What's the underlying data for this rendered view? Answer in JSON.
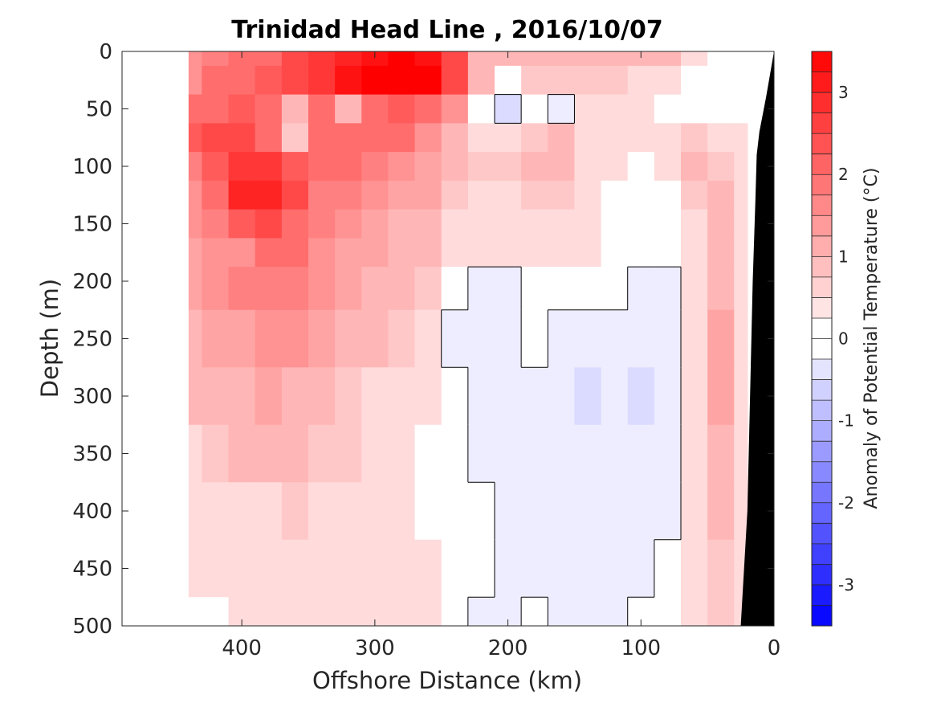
{
  "chart_data": {
    "type": "heatmap",
    "title": "Trinidad Head Line , 2016/10/07",
    "xlabel": "Offshore Distance (km)",
    "ylabel": "Depth (m)",
    "colorbar_label": "Anomaly of Potential Temperature (°C)",
    "xlim": [
      490,
      0
    ],
    "ylim": [
      0,
      500
    ],
    "x_reversed": true,
    "y_reversed": true,
    "x_ticks": [
      400,
      300,
      200,
      100,
      0
    ],
    "y_ticks": [
      0,
      50,
      100,
      150,
      200,
      250,
      300,
      350,
      400,
      450,
      500
    ],
    "colorbar": {
      "range": [
        -3.5,
        3.5
      ],
      "ticks": [
        -3,
        -2,
        -1,
        0,
        1,
        2,
        3
      ],
      "cmap": "blue-white-red"
    },
    "contour_levels_shown": [
      0
    ],
    "data_extent_x": [
      440,
      20
    ],
    "x": [
      440,
      420,
      400,
      380,
      360,
      340,
      320,
      300,
      280,
      260,
      240,
      220,
      200,
      180,
      160,
      140,
      120,
      100,
      80,
      60,
      40,
      20
    ],
    "y": [
      0,
      25,
      50,
      75,
      100,
      125,
      150,
      175,
      200,
      250,
      300,
      350,
      400,
      450,
      500
    ],
    "z": [
      [
        1.3,
        1.6,
        1.8,
        2.0,
        2.3,
        2.6,
        3.0,
        3.2,
        3.3,
        3.2,
        2.4,
        1.0,
        0.8,
        0.9,
        0.9,
        0.9,
        0.9,
        0.9,
        0.9,
        0.5,
        0.1,
        0.0
      ],
      [
        1.5,
        1.8,
        2.0,
        2.2,
        2.4,
        2.6,
        3.1,
        3.3,
        3.4,
        3.3,
        2.5,
        0.8,
        0.2,
        0.7,
        0.7,
        0.7,
        0.6,
        0.5,
        0.4,
        0.1,
        0.0,
        0.0
      ],
      [
        1.8,
        2.0,
        2.2,
        1.8,
        0.9,
        1.8,
        1.0,
        2.0,
        2.2,
        2.0,
        1.3,
        0.2,
        -0.4,
        0.1,
        -0.1,
        0.3,
        0.4,
        0.3,
        0.2,
        0.1,
        0.0,
        0.0
      ],
      [
        2.2,
        2.3,
        2.3,
        2.0,
        0.6,
        1.9,
        2.0,
        1.9,
        1.8,
        1.5,
        1.0,
        0.5,
        0.4,
        0.7,
        0.8,
        0.5,
        0.5,
        0.5,
        0.5,
        0.6,
        0.3,
        0.3
      ],
      [
        1.6,
        2.1,
        2.7,
        2.6,
        2.1,
        1.9,
        2.0,
        1.6,
        1.5,
        1.2,
        0.8,
        0.6,
        0.6,
        0.8,
        0.9,
        0.5,
        0.4,
        0.2,
        0.4,
        0.8,
        0.6,
        0.3
      ],
      [
        1.5,
        2.0,
        2.8,
        3.0,
        2.3,
        1.7,
        1.6,
        1.4,
        1.2,
        1.1,
        0.6,
        0.5,
        0.5,
        0.6,
        0.7,
        0.4,
        0.2,
        0.0,
        0.2,
        0.6,
        0.9,
        0.3
      ],
      [
        1.3,
        1.7,
        2.2,
        2.3,
        2.0,
        1.6,
        1.3,
        1.2,
        1.0,
        0.9,
        0.5,
        0.5,
        0.4,
        0.4,
        0.5,
        0.4,
        0.2,
        0.1,
        0.2,
        0.5,
        0.9,
        0.3
      ],
      [
        1.1,
        1.3,
        1.5,
        1.8,
        1.9,
        1.4,
        1.1,
        1.1,
        0.9,
        0.8,
        0.3,
        0.4,
        0.3,
        0.4,
        0.4,
        0.3,
        0.2,
        0.1,
        0.1,
        0.5,
        1.0,
        0.3
      ],
      [
        1.1,
        1.3,
        1.6,
        1.7,
        1.6,
        1.3,
        1.2,
        1.0,
        0.8,
        0.6,
        0.1,
        -0.1,
        -0.1,
        0.2,
        0.2,
        0.2,
        0.0,
        -0.1,
        -0.1,
        0.4,
        1.0,
        0.3
      ],
      [
        1.0,
        1.1,
        1.2,
        1.5,
        1.5,
        1.1,
        0.9,
        0.8,
        0.6,
        0.4,
        -0.1,
        -0.1,
        -0.2,
        0.0,
        -0.1,
        -0.1,
        -0.1,
        -0.2,
        -0.1,
        0.5,
        1.1,
        0.3
      ],
      [
        0.8,
        0.8,
        1.0,
        1.1,
        1.0,
        0.8,
        0.7,
        0.5,
        0.5,
        0.3,
        0.0,
        -0.1,
        -0.1,
        -0.1,
        -0.2,
        -0.3,
        -0.1,
        -0.3,
        -0.1,
        0.4,
        1.1,
        0.3
      ],
      [
        0.4,
        0.6,
        0.8,
        0.8,
        0.8,
        0.6,
        0.6,
        0.4,
        0.3,
        0.2,
        0.0,
        -0.1,
        -0.1,
        -0.1,
        -0.2,
        -0.2,
        -0.1,
        -0.2,
        -0.1,
        0.4,
        1.0,
        0.3
      ],
      [
        0.3,
        0.4,
        0.5,
        0.5,
        0.6,
        0.5,
        0.4,
        0.3,
        0.3,
        0.2,
        0.0,
        0.0,
        -0.1,
        -0.1,
        -0.1,
        -0.2,
        -0.1,
        -0.1,
        -0.1,
        0.4,
        0.8,
        0.3
      ],
      [
        0.3,
        0.3,
        0.4,
        0.4,
        0.4,
        0.4,
        0.4,
        0.3,
        0.4,
        0.3,
        0.0,
        0.0,
        -0.1,
        -0.1,
        -0.1,
        -0.1,
        -0.1,
        -0.1,
        0.0,
        0.4,
        0.6,
        0.3
      ],
      [
        0.2,
        0.2,
        0.3,
        0.4,
        0.4,
        0.3,
        0.4,
        0.3,
        0.4,
        0.3,
        0.0,
        -0.2,
        -0.2,
        0.0,
        -0.1,
        -0.1,
        -0.1,
        0.0,
        0.0,
        0.5,
        0.6,
        0.3
      ]
    ],
    "bathymetry": [
      [
        0,
        0
      ],
      [
        6,
        40
      ],
      [
        11,
        70
      ],
      [
        13,
        90
      ],
      [
        14,
        130
      ],
      [
        16,
        200
      ],
      [
        18,
        300
      ],
      [
        20,
        400
      ],
      [
        25,
        500
      ]
    ],
    "colors": {
      "positive_max": "#ff0000",
      "negative_max": "#0000ff",
      "zero": "#ffffff",
      "land": "#000000"
    }
  }
}
